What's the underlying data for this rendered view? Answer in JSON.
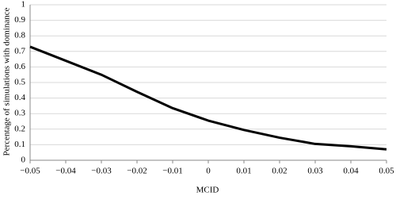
{
  "chart_data": {
    "type": "line",
    "x_label": "MCID",
    "y_label": "Percentage of simulations with dominance",
    "x": [
      -0.05,
      -0.04,
      -0.03,
      -0.02,
      -0.01,
      0,
      0.01,
      0.02,
      0.03,
      0.04,
      0.05
    ],
    "series": [
      {
        "color": "#000000",
        "values": [
          0.73,
          0.64,
          0.55,
          0.44,
          0.335,
          0.255,
          0.195,
          0.145,
          0.105,
          0.09,
          0.07
        ]
      }
    ],
    "xlim": [
      -0.05,
      0.05
    ],
    "xticks": [
      {
        "value": -0.05,
        "label": "−0.05"
      },
      {
        "value": -0.04,
        "label": "−0.04"
      },
      {
        "value": -0.03,
        "label": "−0.03"
      },
      {
        "value": -0.02,
        "label": "−0.02"
      },
      {
        "value": -0.01,
        "label": "−0.01"
      },
      0,
      0.01,
      0.02,
      0.03,
      0.04,
      0.05
    ],
    "ylim": [
      0,
      1
    ],
    "yticks": [
      0,
      0.1,
      0.2,
      0.3,
      0.4,
      0.5,
      0.6,
      0.7,
      0.8,
      0.9,
      1
    ],
    "grid": true
  }
}
